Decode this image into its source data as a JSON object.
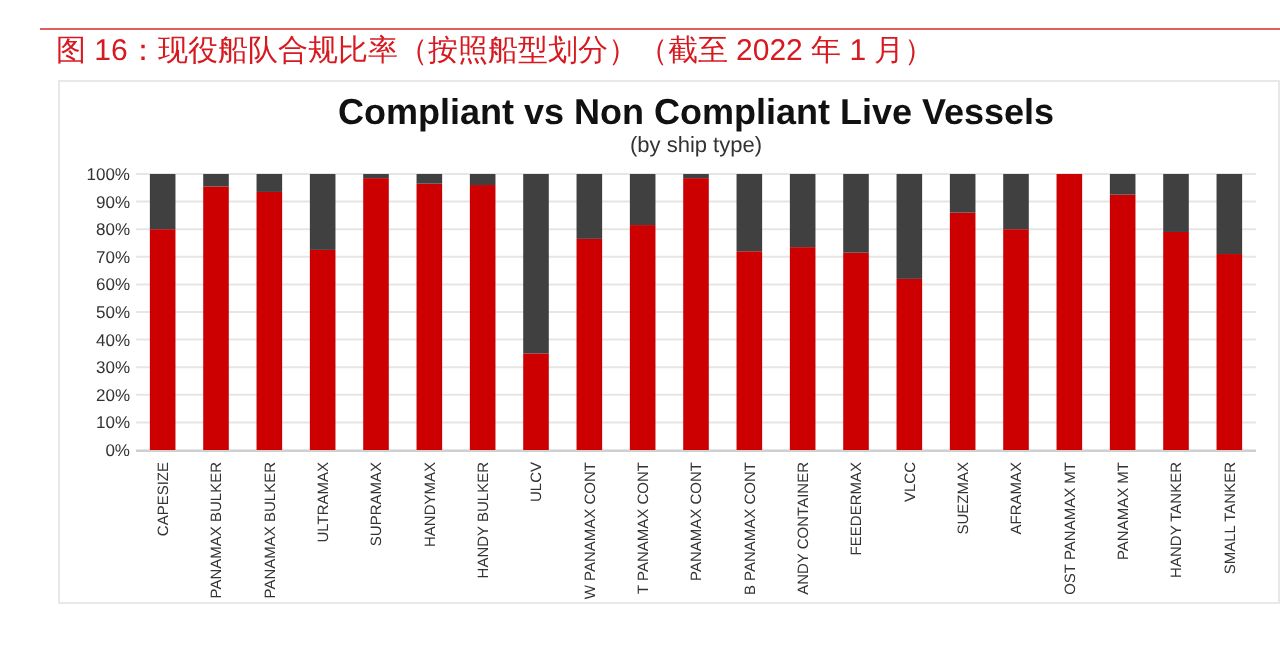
{
  "chart_data": {
    "type": "bar",
    "stacked": true,
    "title": "Compliant vs Non Compliant Live Vessels",
    "subtitle": "(by ship type)",
    "annotations": [
      "图 16：现役船队合规比率（按照船型划分）（截至 2022 年 1 月）"
    ],
    "categories": [
      "CAPESIZE",
      "PANAMAX BULKER",
      "PANAMAX BULKER",
      "ULTRAMAX",
      "SUPRAMAX",
      "HANDYMAX",
      "HANDY BULKER",
      "ULCV",
      "W PANAMAX CONT",
      "T PANAMAX CONT",
      "PANAMAX CONT",
      "B PANAMAX CONT",
      "ANDY CONTAINER",
      "FEEDERMAX",
      "VLCC",
      "SUEZMAX",
      "AFRAMAX",
      "OST PANAMAX MT",
      "PANAMAX MT",
      "HANDY TANKER",
      "SMALL TANKER"
    ],
    "series": [
      {
        "color": "#cc0000",
        "values": [
          80,
          95.5,
          93.5,
          72.5,
          98.5,
          96.5,
          96,
          35,
          76.5,
          81.5,
          98.5,
          72,
          73.5,
          71.5,
          62,
          86,
          80,
          100,
          92.5,
          79,
          71
        ]
      },
      {
        "color": "#404040",
        "values": [
          20,
          4.5,
          6.5,
          27.5,
          1.5,
          3.5,
          4,
          65,
          23.5,
          18.5,
          1.5,
          28,
          26.5,
          28.5,
          38,
          14,
          20,
          0,
          7.5,
          21,
          29
        ]
      }
    ],
    "ylim": [
      0,
      100
    ],
    "yticks": [
      {
        "value": 0,
        "label": "0%"
      },
      {
        "value": 10,
        "label": "10%"
      },
      {
        "value": 20,
        "label": "20%"
      },
      {
        "value": 30,
        "label": "30%"
      },
      {
        "value": 40,
        "label": "40%"
      },
      {
        "value": 50,
        "label": "50%"
      },
      {
        "value": 60,
        "label": "60%"
      },
      {
        "value": 70,
        "label": "70%"
      },
      {
        "value": 80,
        "label": "80%"
      },
      {
        "value": 90,
        "label": "90%"
      },
      {
        "value": 100,
        "label": "100%"
      }
    ],
    "grid": "y"
  }
}
